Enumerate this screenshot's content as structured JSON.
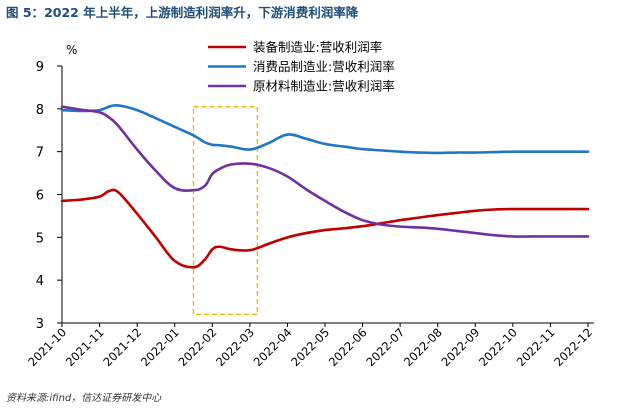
{
  "figure": {
    "label": "图 5：",
    "title": "2022 年上半年，上游制造利润率升，下游消费利润率降",
    "source": "资料来源:ifind，信达证券研发中心"
  },
  "colors": {
    "title": "#1f4e79",
    "highlight_box": "#f5b800"
  },
  "chart_data": {
    "type": "line",
    "title": "2022 年上半年，上游制造利润率升，下游消费利润率降",
    "ylabel": "%",
    "xlabel": "",
    "ylim": [
      3,
      9
    ],
    "yticks": [
      3,
      4,
      5,
      6,
      7,
      8,
      9
    ],
    "grid": false,
    "legend_position": "top-center",
    "categories": [
      "2021-10",
      "2021-11",
      "2021-12",
      "2022-01",
      "2022-02",
      "2022-03",
      "2022-04",
      "2022-05",
      "2022-06",
      "2022-07",
      "2022-08",
      "2022-09",
      "2022-10",
      "2022-11",
      "2022-12"
    ],
    "x": [
      0,
      0.5,
      1,
      1.25,
      1.5,
      2,
      2.5,
      3,
      3.5,
      3.8,
      4,
      4.2,
      4.5,
      5,
      5.5,
      6,
      6.5,
      7,
      7.5,
      8,
      8.5,
      9,
      9.5,
      10,
      10.5,
      11,
      11.5,
      12,
      12.5,
      13,
      13.5,
      14
    ],
    "highlight": {
      "x_start": 3.5,
      "x_end": 5.2,
      "y_start": 3.2,
      "y_end": 8.05
    },
    "series": [
      {
        "name": "装备制造业:营收利润率",
        "color": "#c00000",
        "values": [
          5.85,
          5.88,
          5.95,
          6.08,
          6.05,
          5.55,
          5.0,
          4.45,
          4.3,
          4.48,
          4.72,
          4.78,
          4.72,
          4.7,
          4.85,
          5.0,
          5.1,
          5.17,
          5.21,
          5.26,
          5.33,
          5.4,
          5.46,
          5.52,
          5.57,
          5.62,
          5.65,
          5.66,
          5.66,
          5.66,
          5.66,
          5.66
        ]
      },
      {
        "name": "消费品制造业:营收利润率",
        "color": "#1f77c4",
        "values": [
          7.97,
          7.95,
          7.97,
          8.05,
          8.08,
          7.97,
          7.78,
          7.58,
          7.38,
          7.22,
          7.16,
          7.15,
          7.12,
          7.05,
          7.2,
          7.4,
          7.3,
          7.18,
          7.12,
          7.06,
          7.03,
          7.0,
          6.98,
          6.97,
          6.98,
          6.98,
          6.99,
          7.0,
          7.0,
          7.0,
          7.0,
          7.0
        ]
      },
      {
        "name": "原材料制造业:营收利润率",
        "color": "#7030a0",
        "values": [
          8.05,
          7.98,
          7.92,
          7.8,
          7.6,
          7.05,
          6.55,
          6.15,
          6.1,
          6.2,
          6.48,
          6.6,
          6.7,
          6.72,
          6.62,
          6.42,
          6.12,
          5.85,
          5.6,
          5.4,
          5.3,
          5.25,
          5.23,
          5.2,
          5.15,
          5.1,
          5.05,
          5.02,
          5.02,
          5.02,
          5.02,
          5.02
        ]
      }
    ]
  }
}
